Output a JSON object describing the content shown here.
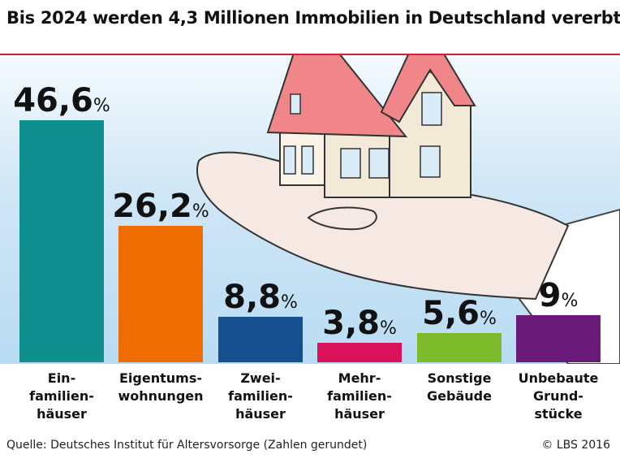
{
  "title": "Bis 2024 werden 4,3 Millionen Immobilien in Deutschland vererbt",
  "source": "Quelle: Deutsches Institut für Altersvorsorge (Zahlen gerundet)",
  "copyright": "© LBS 2016",
  "chart_data": {
    "type": "bar",
    "title": "Bis 2024 werden 4,3 Millionen Immobilien in Deutschland vererbt",
    "unit": "%",
    "categories": [
      "Ein-\nfamilien-\nhäuser",
      "Eigentums-\nwohnungen",
      "Zwei-\nfamilien-\nhäuser",
      "Mehr-\nfamilien-\nhäuser",
      "Sonstige\nGebäude",
      "Unbebaute\nGrund-\nstücke"
    ],
    "values": [
      46.6,
      26.2,
      8.8,
      3.8,
      5.6,
      9
    ],
    "value_labels": [
      "46,6",
      "26,2",
      "8,8",
      "3,8",
      "5,6",
      "9"
    ],
    "colors": [
      "#0f8e8e",
      "#ef6c00",
      "#154f8f",
      "#d8135c",
      "#7dbb2c",
      "#6a1a78"
    ],
    "grid": false,
    "legend": "none"
  }
}
